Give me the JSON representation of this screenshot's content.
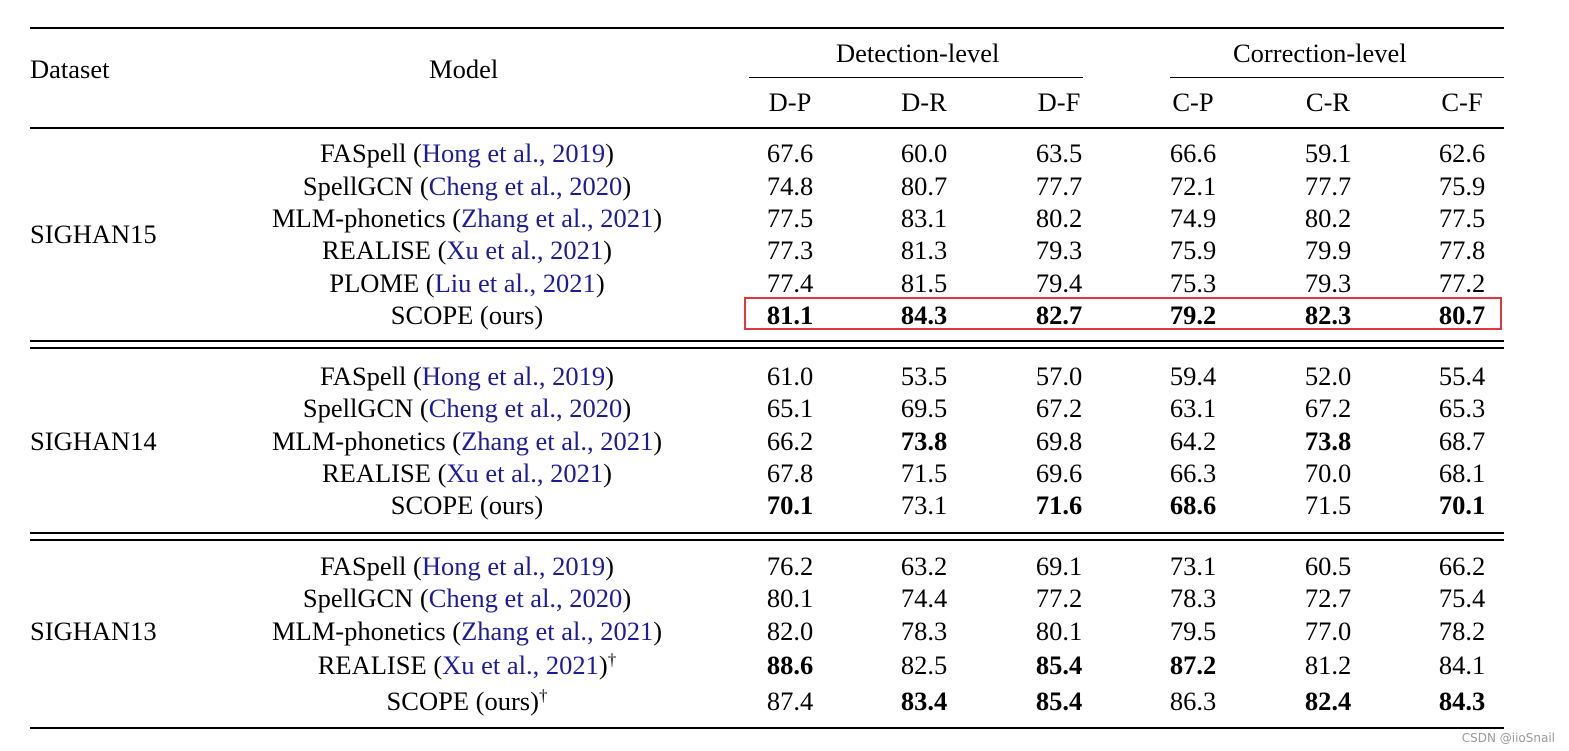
{
  "header": {
    "dataset": "Dataset",
    "model": "Model",
    "detection_group": "Detection-level",
    "correction_group": "Correction-level",
    "metrics": [
      "D-P",
      "D-R",
      "D-F",
      "C-P",
      "C-R",
      "C-F"
    ]
  },
  "groups": [
    {
      "dataset": "SIGHAN15",
      "rows": [
        {
          "model": "FASpell",
          "cite": "Hong et al., 2019",
          "dagger": false,
          "values": [
            "67.6",
            "60.0",
            "63.5",
            "66.6",
            "59.1",
            "62.6"
          ],
          "bold": [
            false,
            false,
            false,
            false,
            false,
            false
          ]
        },
        {
          "model": "SpellGCN",
          "cite": "Cheng et al., 2020",
          "dagger": false,
          "values": [
            "74.8",
            "80.7",
            "77.7",
            "72.1",
            "77.7",
            "75.9"
          ],
          "bold": [
            false,
            false,
            false,
            false,
            false,
            false
          ]
        },
        {
          "model": "MLM-phonetics",
          "cite": "Zhang et al., 2021",
          "dagger": false,
          "values": [
            "77.5",
            "83.1",
            "80.2",
            "74.9",
            "80.2",
            "77.5"
          ],
          "bold": [
            false,
            false,
            false,
            false,
            false,
            false
          ]
        },
        {
          "model": "REALISE",
          "cite": "Xu et al., 2021",
          "dagger": false,
          "values": [
            "77.3",
            "81.3",
            "79.3",
            "75.9",
            "79.9",
            "77.8"
          ],
          "bold": [
            false,
            false,
            false,
            false,
            false,
            false
          ]
        },
        {
          "model": "PLOME",
          "cite": "Liu et al., 2021",
          "dagger": false,
          "values": [
            "77.4",
            "81.5",
            "79.4",
            "75.3",
            "79.3",
            "77.2"
          ],
          "bold": [
            false,
            false,
            false,
            false,
            false,
            false
          ]
        },
        {
          "model": "SCOPE (ours)",
          "cite": "",
          "dagger": false,
          "values": [
            "81.1",
            "84.3",
            "82.7",
            "79.2",
            "82.3",
            "80.7"
          ],
          "bold": [
            true,
            true,
            true,
            true,
            true,
            true
          ],
          "highlighted": true
        }
      ]
    },
    {
      "dataset": "SIGHAN14",
      "rows": [
        {
          "model": "FASpell",
          "cite": "Hong et al., 2019",
          "dagger": false,
          "values": [
            "61.0",
            "53.5",
            "57.0",
            "59.4",
            "52.0",
            "55.4"
          ],
          "bold": [
            false,
            false,
            false,
            false,
            false,
            false
          ]
        },
        {
          "model": "SpellGCN",
          "cite": "Cheng et al., 2020",
          "dagger": false,
          "values": [
            "65.1",
            "69.5",
            "67.2",
            "63.1",
            "67.2",
            "65.3"
          ],
          "bold": [
            false,
            false,
            false,
            false,
            false,
            false
          ]
        },
        {
          "model": "MLM-phonetics",
          "cite": "Zhang et al., 2021",
          "dagger": false,
          "values": [
            "66.2",
            "73.8",
            "69.8",
            "64.2",
            "73.8",
            "68.7"
          ],
          "bold": [
            false,
            true,
            false,
            false,
            true,
            false
          ]
        },
        {
          "model": "REALISE",
          "cite": "Xu et al., 2021",
          "dagger": false,
          "values": [
            "67.8",
            "71.5",
            "69.6",
            "66.3",
            "70.0",
            "68.1"
          ],
          "bold": [
            false,
            false,
            false,
            false,
            false,
            false
          ]
        },
        {
          "model": "SCOPE (ours)",
          "cite": "",
          "dagger": false,
          "values": [
            "70.1",
            "73.1",
            "71.6",
            "68.6",
            "71.5",
            "70.1"
          ],
          "bold": [
            true,
            false,
            true,
            true,
            false,
            true
          ]
        }
      ]
    },
    {
      "dataset": "SIGHAN13",
      "rows": [
        {
          "model": "FASpell",
          "cite": "Hong et al., 2019",
          "dagger": false,
          "values": [
            "76.2",
            "63.2",
            "69.1",
            "73.1",
            "60.5",
            "66.2"
          ],
          "bold": [
            false,
            false,
            false,
            false,
            false,
            false
          ]
        },
        {
          "model": "SpellGCN",
          "cite": "Cheng et al., 2020",
          "dagger": false,
          "values": [
            "80.1",
            "74.4",
            "77.2",
            "78.3",
            "72.7",
            "75.4"
          ],
          "bold": [
            false,
            false,
            false,
            false,
            false,
            false
          ]
        },
        {
          "model": "MLM-phonetics",
          "cite": "Zhang et al., 2021",
          "dagger": false,
          "values": [
            "82.0",
            "78.3",
            "80.1",
            "79.5",
            "77.0",
            "78.2"
          ],
          "bold": [
            false,
            false,
            false,
            false,
            false,
            false
          ]
        },
        {
          "model": "REALISE",
          "cite": "Xu et al., 2021",
          "dagger": true,
          "values": [
            "88.6",
            "82.5",
            "85.4",
            "87.2",
            "81.2",
            "84.1"
          ],
          "bold": [
            true,
            false,
            true,
            true,
            false,
            false
          ]
        },
        {
          "model": "SCOPE (ours)",
          "cite": "",
          "dagger": true,
          "values": [
            "87.4",
            "83.4",
            "85.4",
            "86.3",
            "82.4",
            "84.3"
          ],
          "bold": [
            false,
            true,
            true,
            false,
            true,
            true
          ]
        }
      ]
    }
  ],
  "dagger_symbol": "†",
  "cite_open": "(",
  "cite_close": ")",
  "watermark": "CSDN @iioSnail",
  "colors": {
    "citation": "#1b1b9c",
    "highlight_box": "#e0373c"
  }
}
